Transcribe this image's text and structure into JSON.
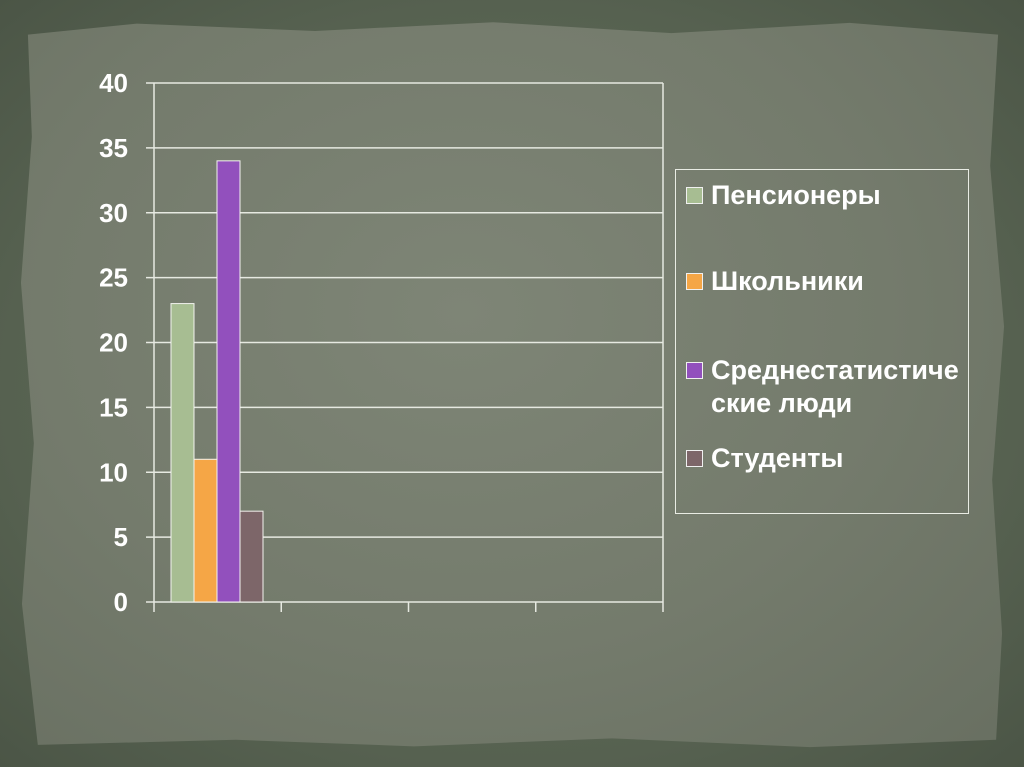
{
  "chart_data": {
    "type": "bar",
    "categories": [
      ""
    ],
    "series": [
      {
        "name": "Пенсионеры",
        "values": [
          23
        ],
        "color": "#a7bd92"
      },
      {
        "name": "Школьники",
        "values": [
          11
        ],
        "color": "#f5a646"
      },
      {
        "name": "Среднестатистические люди",
        "values": [
          34
        ],
        "color": "#9250bd"
      },
      {
        "name": "Студенты",
        "values": [
          7
        ],
        "color": "#7d6669"
      }
    ],
    "ylim": [
      0,
      40
    ],
    "yticks": [
      0,
      5,
      10,
      15,
      20,
      25,
      30,
      35,
      40
    ],
    "title": "",
    "xlabel": "",
    "ylabel": "",
    "grid": true,
    "legend_position": "right"
  }
}
